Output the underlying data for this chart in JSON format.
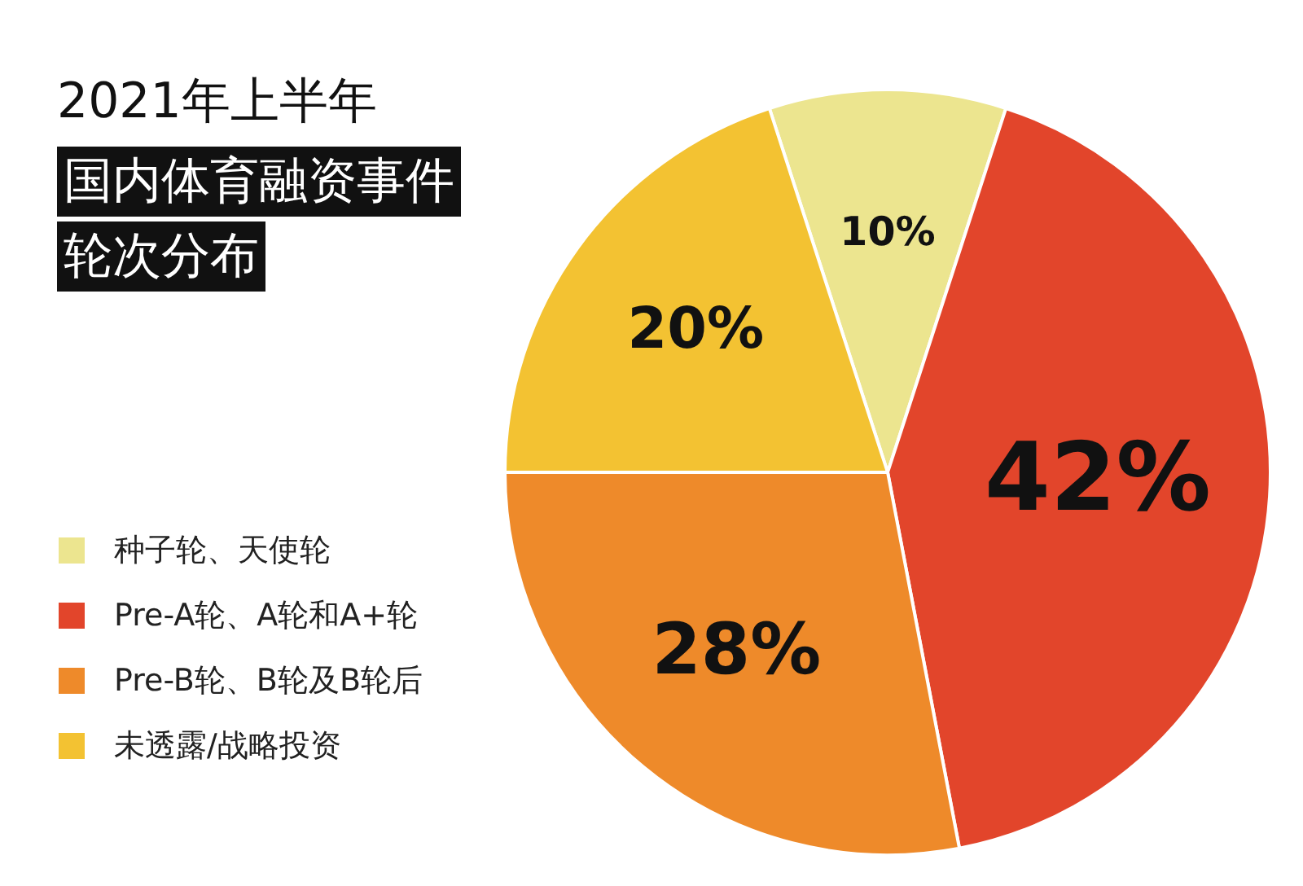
{
  "chart_data": {
    "type": "pie",
    "title": "2021年上半年",
    "subtitle": "国内体育融资事件轮次分布",
    "categories": [
      "种子轮、天使轮",
      "Pre-A轮、A轮和A+轮",
      "Pre-B轮、B轮及B轮后",
      "未透露/战略投资"
    ],
    "values": [
      10,
      42,
      28,
      20
    ],
    "colors": [
      "#ece58f",
      "#e2452b",
      "#ee8a2a",
      "#f3c232"
    ],
    "value_labels": [
      "10%",
      "42%",
      "28%",
      "20%"
    ],
    "legend": "left"
  }
}
